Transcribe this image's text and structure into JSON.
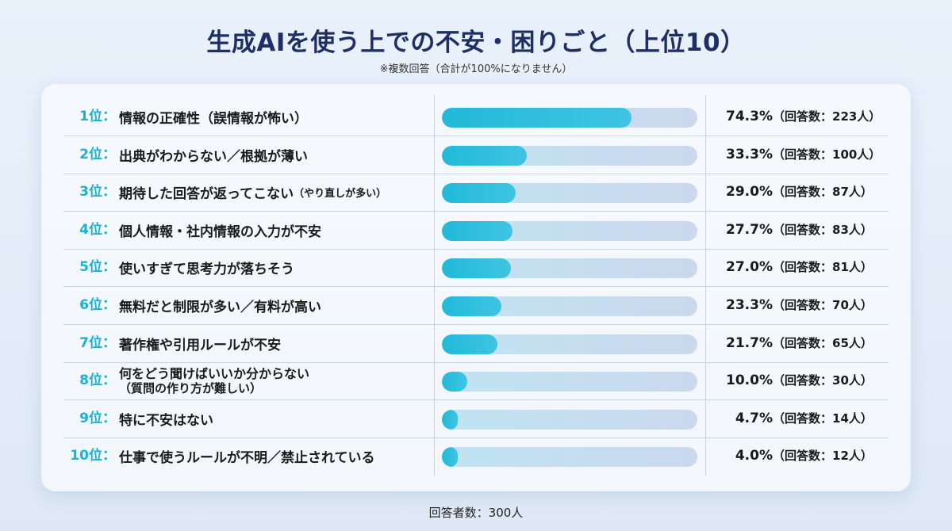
{
  "title": "生成AIを使う上での不安・困りごと（上位10）",
  "subtitle": "※複数回答（合計が100%になりません）",
  "footer": "回答者数：300人",
  "colors": {
    "bar_fill": "#22b9d9",
    "bar_track": "#c7deef",
    "rank": "#1ab1d2",
    "title": "#1f2f66"
  },
  "chart_data": {
    "type": "bar",
    "orientation": "horizontal",
    "unit": "%",
    "xlim": [
      0,
      100
    ],
    "rows": [
      {
        "rank": "1位：",
        "label": "情報の正確性（誤情報が怖い）",
        "value": 74.3,
        "pct": "74.3%",
        "count": "（回答数：223人）"
      },
      {
        "rank": "2位：",
        "label": "出典がわからない／根拠が薄い",
        "value": 33.3,
        "pct": "33.3%",
        "count": "（回答数：100人）"
      },
      {
        "rank": "3位：",
        "label": "期待した回答が返ってこない",
        "label_small": "（やり直しが多い）",
        "value": 29.0,
        "pct": "29.0%",
        "count": "（回答数：87人）"
      },
      {
        "rank": "4位：",
        "label": "個人情報・社内情報の入力が不安",
        "value": 27.7,
        "pct": "27.7%",
        "count": "（回答数：83人）"
      },
      {
        "rank": "5位：",
        "label": "使いすぎて思考力が落ちそう",
        "value": 27.0,
        "pct": "27.0%",
        "count": "（回答数：81人）"
      },
      {
        "rank": "6位：",
        "label": "無料だと制限が多い／有料が高い",
        "value": 23.3,
        "pct": "23.3%",
        "count": "（回答数：70人）"
      },
      {
        "rank": "7位：",
        "label": "著作権や引用ルールが不安",
        "value": 21.7,
        "pct": "21.7%",
        "count": "（回答数：65人）"
      },
      {
        "rank": "8位：",
        "label": "何をどう聞けばいいか分からない",
        "label_line2": "（質問の作り方が難しい）",
        "value": 10.0,
        "pct": "10.0%",
        "count": "（回答数：30人）"
      },
      {
        "rank": "9位：",
        "label": "特に不安はない",
        "value": 4.7,
        "pct": "4.7%",
        "count": "（回答数：14人）"
      },
      {
        "rank": "10位：",
        "label": "仕事で使うルールが不明／禁止されている",
        "value": 4.0,
        "pct": "4.0%",
        "count": "（回答数：12人）"
      }
    ]
  }
}
